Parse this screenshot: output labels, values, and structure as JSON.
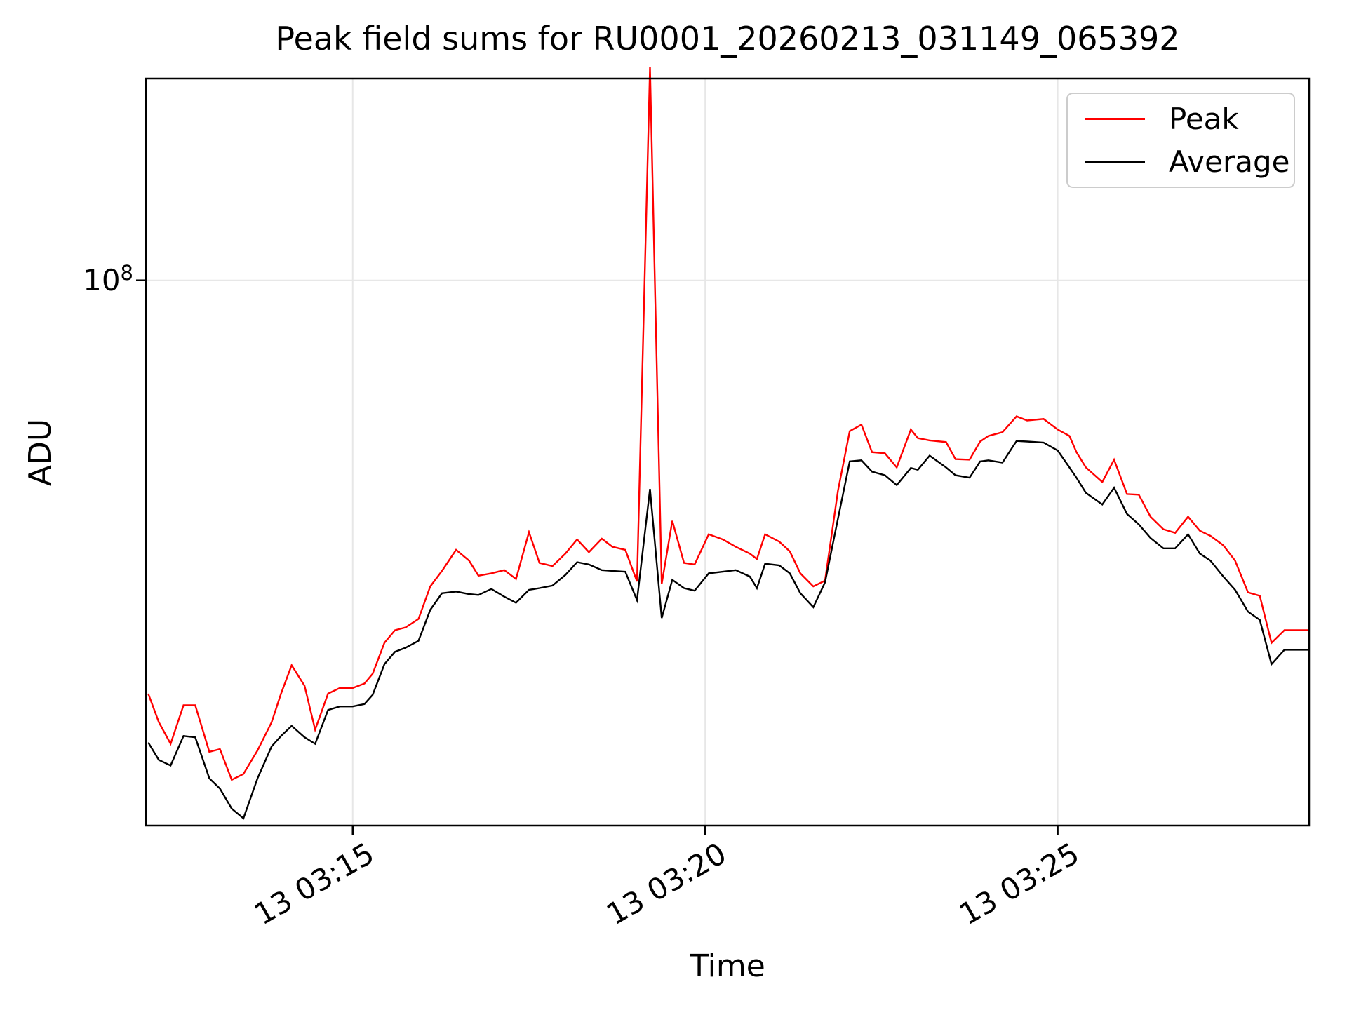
{
  "figure": {
    "title": "Peak field sums for RU0001_20260213_031149_065392",
    "xlabel": "Time",
    "ylabel": "ADU",
    "background": "#ffffff",
    "grid_color": "#e7e7e7",
    "spine_color": "#000000",
    "y_tick": {
      "base": "10",
      "exponent": "8"
    }
  },
  "chart_data": {
    "type": "line",
    "title": "Peak field sums for RU0001_20260213_031149_065392",
    "xlabel": "Time",
    "ylabel": "ADU",
    "y_scale": "log",
    "grid": true,
    "legend_position": "upper right",
    "day": "13",
    "x_range": [
      "03:12:04",
      "03:28:34"
    ],
    "y_range": [
      21060000.0,
      178000000.0
    ],
    "y_tick_values": [
      100000000.0
    ],
    "x_ticks": [
      {
        "time": "03:15:00",
        "label": "13 03:15"
      },
      {
        "time": "03:20:00",
        "label": "13 03:20"
      },
      {
        "time": "03:25:00",
        "label": "13 03:25"
      }
    ],
    "times": [
      "03:12:06",
      "03:12:15",
      "03:12:25",
      "03:12:36",
      "03:12:46",
      "03:12:58",
      "03:13:07",
      "03:13:17",
      "03:13:27",
      "03:13:39",
      "03:13:51",
      "03:13:59",
      "03:14:08",
      "03:14:19",
      "03:14:28",
      "03:14:39",
      "03:14:49",
      "03:15:00",
      "03:15:10",
      "03:15:17",
      "03:15:27",
      "03:15:36",
      "03:15:45",
      "03:15:56",
      "03:16:06",
      "03:16:16",
      "03:16:28",
      "03:16:39",
      "03:16:47",
      "03:16:58",
      "03:17:09",
      "03:17:19",
      "03:17:30",
      "03:17:39",
      "03:17:50",
      "03:18:01",
      "03:18:11",
      "03:18:21",
      "03:18:32",
      "03:18:41",
      "03:18:52",
      "03:19:02",
      "03:19:13",
      "03:19:23",
      "03:19:32",
      "03:19:42",
      "03:19:51",
      "03:20:03",
      "03:20:15",
      "03:20:26",
      "03:20:38",
      "03:20:44",
      "03:20:51",
      "03:21:03",
      "03:21:12",
      "03:21:21",
      "03:21:32",
      "03:21:42",
      "03:21:53",
      "03:22:03",
      "03:22:13",
      "03:22:22",
      "03:22:33",
      "03:22:43",
      "03:22:55",
      "03:23:01",
      "03:23:11",
      "03:23:25",
      "03:23:33",
      "03:23:45",
      "03:23:54",
      "03:24:01",
      "03:24:13",
      "03:24:25",
      "03:24:34",
      "03:24:48",
      "03:25:00",
      "03:25:10",
      "03:25:16",
      "03:25:24",
      "03:25:38",
      "03:25:48",
      "03:25:59",
      "03:26:09",
      "03:26:19",
      "03:26:30",
      "03:26:40",
      "03:26:51",
      "03:27:01",
      "03:27:10",
      "03:27:21",
      "03:27:31",
      "03:27:42",
      "03:27:52",
      "03:28:02",
      "03:28:13",
      "03:28:24",
      "03:28:34"
    ],
    "series": [
      {
        "name": "Peak",
        "color": "#ff0000",
        "values": [
          30700000.0,
          28300000.0,
          26600000.0,
          29700000.0,
          29700000.0,
          26000000.0,
          26200000.0,
          24000000.0,
          24400000.0,
          26100000.0,
          28300000.0,
          30700000.0,
          33300000.0,
          31400000.0,
          27700000.0,
          30700000.0,
          31200000.0,
          31200000.0,
          31600000.0,
          32500000.0,
          35500000.0,
          36800000.0,
          37100000.0,
          38000000.0,
          41700000.0,
          43600000.0,
          46300000.0,
          44900000.0,
          43000000.0,
          43300000.0,
          43700000.0,
          42600000.0,
          48700000.0,
          44600000.0,
          44200000.0,
          45800000.0,
          47700000.0,
          46000000.0,
          47800000.0,
          46700000.0,
          46300000.0,
          42300000.0,
          184000000.0,
          42000000.0,
          50300000.0,
          44600000.0,
          44400000.0,
          48400000.0,
          47700000.0,
          46700000.0,
          45800000.0,
          45100000.0,
          48400000.0,
          47400000.0,
          46100000.0,
          43300000.0,
          41700000.0,
          42400000.0,
          54800000.0,
          65000000.0,
          66200000.0,
          61200000.0,
          61000000.0,
          58600000.0,
          65300000.0,
          63700000.0,
          63300000.0,
          63000000.0,
          60000000.0,
          59900000.0,
          63100000.0,
          64100000.0,
          64800000.0,
          67800000.0,
          67000000.0,
          67300000.0,
          65300000.0,
          64100000.0,
          61200000.0,
          58600000.0,
          56200000.0,
          59900000.0,
          54300000.0,
          54200000.0,
          50900000.0,
          49100000.0,
          48600000.0,
          50900000.0,
          48900000.0,
          48200000.0,
          46900000.0,
          44900000.0,
          41000000.0,
          40600000.0,
          35500000.0,
          36800000.0,
          36800000.0,
          36800000.0
        ]
      },
      {
        "name": "Average",
        "color": "#000000",
        "values": [
          26700000.0,
          25400000.0,
          25000000.0,
          27200000.0,
          27100000.0,
          24100000.0,
          23400000.0,
          22100000.0,
          21500000.0,
          24100000.0,
          26400000.0,
          27200000.0,
          28000000.0,
          27100000.0,
          26600000.0,
          29300000.0,
          29600000.0,
          29600000.0,
          29800000.0,
          30600000.0,
          33400000.0,
          34600000.0,
          35000000.0,
          35700000.0,
          39000000.0,
          40900000.0,
          41100000.0,
          40800000.0,
          40700000.0,
          41400000.0,
          40500000.0,
          39800000.0,
          41300000.0,
          41500000.0,
          41800000.0,
          43100000.0,
          44700000.0,
          44400000.0,
          43700000.0,
          43600000.0,
          43500000.0,
          40100000.0,
          55100000.0,
          38100000.0,
          42500000.0,
          41500000.0,
          41200000.0,
          43300000.0,
          43500000.0,
          43700000.0,
          42900000.0,
          41500000.0,
          44500000.0,
          44300000.0,
          43300000.0,
          40900000.0,
          39300000.0,
          42200000.0,
          50600000.0,
          59600000.0,
          59800000.0,
          57900000.0,
          57300000.0,
          55700000.0,
          58500000.0,
          58200000.0,
          60600000.0,
          58600000.0,
          57300000.0,
          56900000.0,
          59600000.0,
          59800000.0,
          59400000.0,
          63200000.0,
          63100000.0,
          62900000.0,
          61500000.0,
          58600000.0,
          56900000.0,
          54500000.0,
          52700000.0,
          55300000.0,
          51300000.0,
          49800000.0,
          47900000.0,
          46500000.0,
          46500000.0,
          48400000.0,
          45800000.0,
          44900000.0,
          42900000.0,
          41300000.0,
          38800000.0,
          37900000.0,
          33400000.0,
          34800000.0,
          34800000.0,
          34800000.0
        ]
      }
    ]
  }
}
